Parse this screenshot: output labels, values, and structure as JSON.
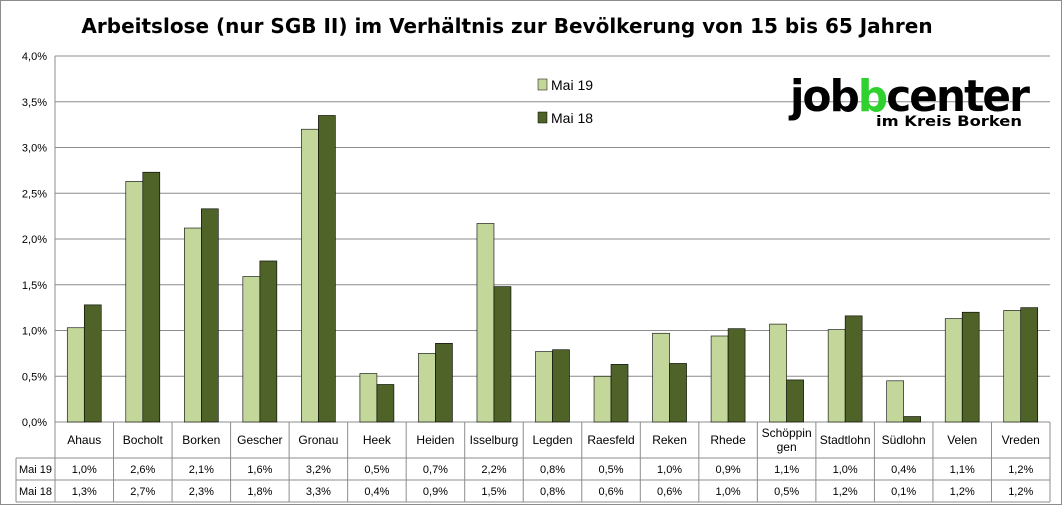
{
  "chart_data": {
    "type": "bar",
    "title": "Arbeitslose (nur SGB II) im Verhältnis zur Bevölkerung von 15 bis 65 Jahren",
    "categories": [
      "Ahaus",
      "Bocholt",
      "Borken",
      "Gescher",
      "Gronau",
      "Heek",
      "Heiden",
      "Isselburg",
      "Legden",
      "Raesfeld",
      "Reken",
      "Rhede",
      "Schöppin\ngen",
      "Stadtlohn",
      "Südlohn",
      "Velen",
      "Vreden"
    ],
    "series": [
      {
        "name": "Mai 19",
        "color": "#c4d79b",
        "values": [
          1.03,
          2.63,
          2.12,
          1.59,
          3.2,
          0.53,
          0.75,
          2.17,
          0.77,
          0.5,
          0.97,
          0.94,
          1.07,
          1.01,
          0.45,
          1.13,
          1.22
        ],
        "labels": [
          "1,0%",
          "2,6%",
          "2,1%",
          "1,6%",
          "3,2%",
          "0,5%",
          "0,7%",
          "2,2%",
          "0,8%",
          "0,5%",
          "1,0%",
          "0,9%",
          "1,1%",
          "1,0%",
          "0,4%",
          "1,1%",
          "1,2%"
        ]
      },
      {
        "name": "Mai 18",
        "color": "#4f6228",
        "values": [
          1.28,
          2.73,
          2.33,
          1.76,
          3.35,
          0.41,
          0.86,
          1.48,
          0.79,
          0.63,
          0.64,
          1.02,
          0.46,
          1.16,
          0.06,
          1.2,
          1.25
        ],
        "labels": [
          "1,3%",
          "2,7%",
          "2,3%",
          "1,8%",
          "3,3%",
          "0,4%",
          "0,9%",
          "1,5%",
          "0,8%",
          "0,6%",
          "0,6%",
          "1,0%",
          "0,5%",
          "1,2%",
          "0,1%",
          "1,2%",
          "1,2%"
        ]
      }
    ],
    "yticks": [
      "0,0%",
      "0,5%",
      "1,0%",
      "1,5%",
      "2,0%",
      "2,5%",
      "3,0%",
      "3,5%",
      "4,0%"
    ],
    "ylim": [
      0,
      4
    ],
    "grid": true,
    "legend_position": "top-center",
    "data_table": true
  },
  "logo": {
    "main": "jobcenter",
    "sub": "im Kreis Borken",
    "accent": "#2fd12f"
  }
}
